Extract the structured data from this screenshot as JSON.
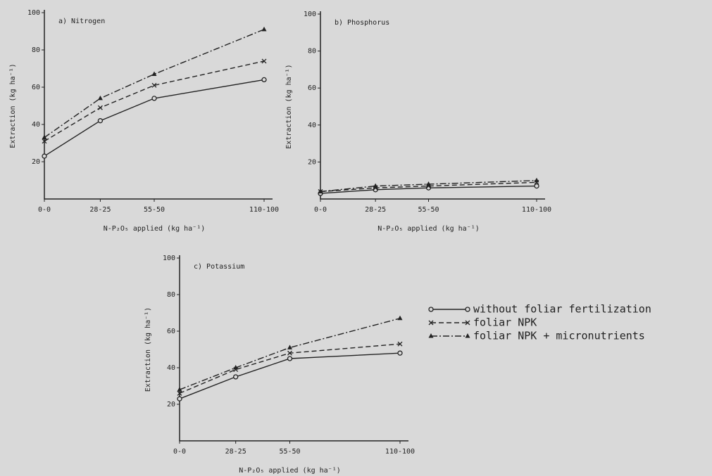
{
  "chart_data": [
    {
      "type": "line",
      "title": "a) Nitrogen",
      "ylabel": "Extraction (kg ha⁻¹)",
      "xlabel": "N-P₂O₅ applied (kg ha⁻¹)",
      "x": [
        0,
        28,
        55,
        110
      ],
      "xlim": [
        0,
        110
      ],
      "xticks": [
        {
          "value": 0,
          "label": "0-0"
        },
        {
          "value": 28,
          "label": "28-25"
        },
        {
          "value": 55,
          "label": "55-50"
        },
        {
          "value": 110,
          "label": "110-100"
        }
      ],
      "ylim": [
        0,
        100
      ],
      "yticks": [
        20,
        40,
        60,
        80,
        100
      ],
      "grid": false,
      "series": [
        {
          "name": "without foliar fertilization",
          "color": "#222222",
          "marker": "circle",
          "line_style": "solid",
          "values": [
            23,
            42,
            54,
            64
          ]
        },
        {
          "name": "foliar NPK",
          "color": "#222222",
          "marker": "x",
          "line_style": "dashed",
          "values": [
            31,
            49,
            61,
            74
          ]
        },
        {
          "name": "foliar NPK + micronutrients",
          "color": "#222222",
          "marker": "triangle",
          "line_style": "dashdot",
          "values": [
            33,
            54,
            67,
            91
          ]
        }
      ]
    },
    {
      "type": "line",
      "title": "b) Phosphorus",
      "ylabel": "Extraction (kg ha⁻¹)",
      "xlabel": "N-P₂O₅ applied (kg ha⁻¹)",
      "x": [
        0,
        28,
        55,
        110
      ],
      "xlim": [
        0,
        110
      ],
      "xticks": [
        {
          "value": 0,
          "label": "0-0"
        },
        {
          "value": 28,
          "label": "28-25"
        },
        {
          "value": 55,
          "label": "55-50"
        },
        {
          "value": 110,
          "label": "110-100"
        }
      ],
      "ylim": [
        0,
        100
      ],
      "yticks": [
        20,
        40,
        60,
        80,
        100
      ],
      "grid": false,
      "series": [
        {
          "name": "without foliar fertilization",
          "color": "#222222",
          "marker": "circle",
          "line_style": "solid",
          "values": [
            3,
            5,
            6,
            7
          ]
        },
        {
          "name": "foliar NPK",
          "color": "#222222",
          "marker": "x",
          "line_style": "dashed",
          "values": [
            4,
            6,
            7,
            9
          ]
        },
        {
          "name": "foliar NPK + micronutrients",
          "color": "#222222",
          "marker": "triangle",
          "line_style": "dashdot",
          "values": [
            4,
            7,
            8,
            10
          ]
        }
      ]
    },
    {
      "type": "line",
      "title": "c) Potassium",
      "ylabel": "Extraction (kg ha⁻¹)",
      "xlabel": "N-P₂O₅ applied (kg ha⁻¹)",
      "x": [
        0,
        28,
        55,
        110
      ],
      "xlim": [
        0,
        110
      ],
      "xticks": [
        {
          "value": 0,
          "label": "0-0"
        },
        {
          "value": 28,
          "label": "28-25"
        },
        {
          "value": 55,
          "label": "55-50"
        },
        {
          "value": 110,
          "label": "110-100"
        }
      ],
      "ylim": [
        0,
        100
      ],
      "yticks": [
        20,
        40,
        60,
        80,
        100
      ],
      "grid": false,
      "legend": "right",
      "series": [
        {
          "name": "without foliar fertilization",
          "color": "#222222",
          "marker": "circle",
          "line_style": "solid",
          "values": [
            23,
            35,
            45,
            48
          ]
        },
        {
          "name": "foliar NPK",
          "color": "#222222",
          "marker": "x",
          "line_style": "dashed",
          "values": [
            26,
            39,
            48,
            53
          ]
        },
        {
          "name": "foliar NPK + micronutrients",
          "color": "#222222",
          "marker": "triangle",
          "line_style": "dashdot",
          "values": [
            28,
            40,
            51,
            67
          ]
        }
      ]
    }
  ]
}
